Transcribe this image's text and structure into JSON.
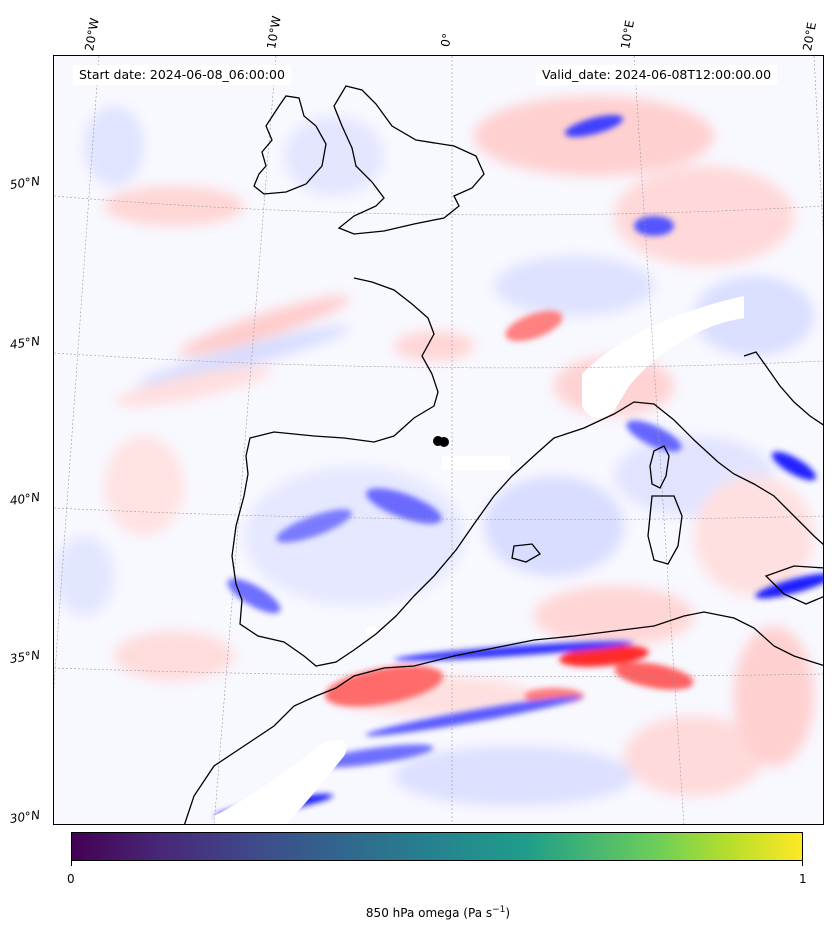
{
  "map": {
    "start_date_text": "Start date: 2024-06-08_06:00:00",
    "valid_date_text": "Valid_date: 2024-06-08T12:00:00.00",
    "lon_labels": [
      "20°W",
      "10°W",
      "0°",
      "10°E",
      "20°E"
    ],
    "lat_labels": [
      "50°N",
      "45°N",
      "40°N",
      "35°N",
      "30°N"
    ],
    "field": "850 hPa omega",
    "colors": {
      "positive": "#ff0000",
      "negative": "#0000ff",
      "coastline": "#000000",
      "gridline": "#999999"
    }
  },
  "colorbar": {
    "min_label": "0",
    "max_label": "1",
    "title_prefix": "850 hPa omega (Pa s",
    "title_exp": "−1",
    "title_suffix": ")",
    "colormap": "viridis"
  }
}
